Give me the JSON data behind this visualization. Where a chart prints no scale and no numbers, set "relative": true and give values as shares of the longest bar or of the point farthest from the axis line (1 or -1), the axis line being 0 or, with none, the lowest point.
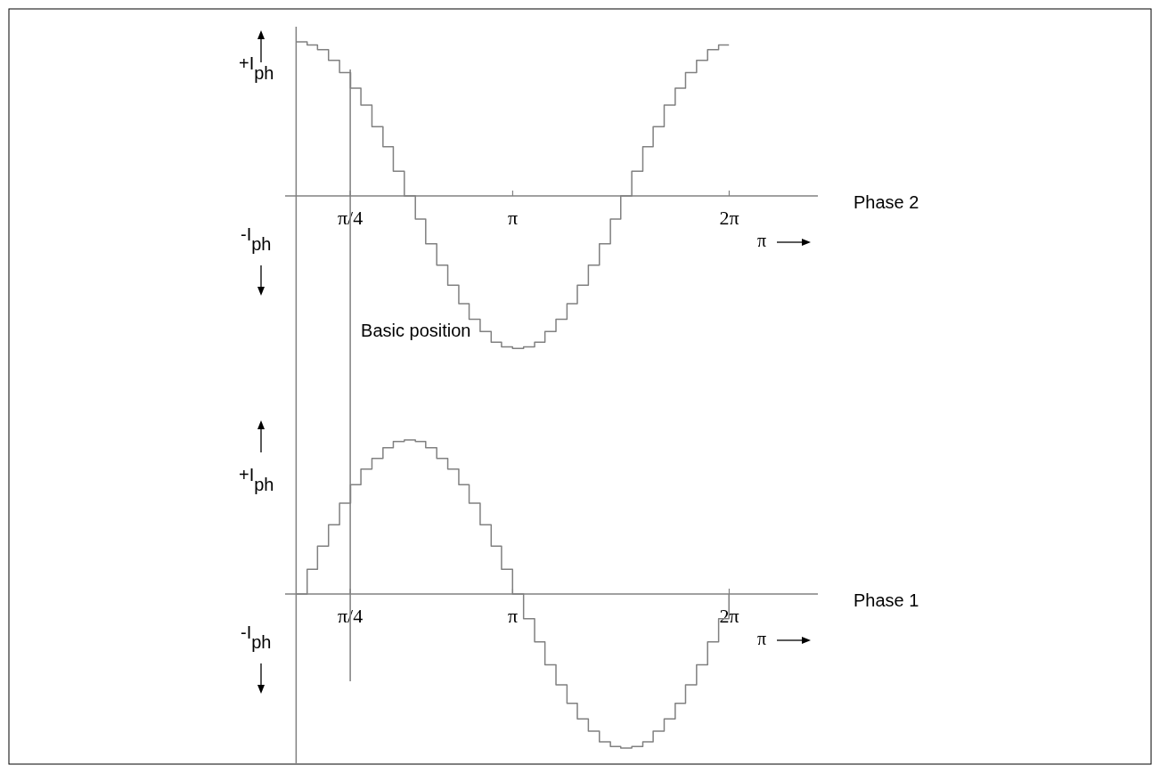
{
  "chart_data": [
    {
      "type": "step",
      "xlabel": "π",
      "ylabel": "+I$_{ph}$",
      "annotations": [
        "-I$_{ph}$",
        "Phase 2"
      ],
      "relative": true,
      "xlim": [
        -0.16,
        7.57
      ],
      "xticks": [
        {
          "value": 0.785,
          "label": "π/4"
        },
        {
          "value": 3.142,
          "label": "π"
        },
        {
          "value": 6.283,
          "label": "2π"
        }
      ],
      "ref_lines": [
        {
          "axis": "x",
          "value": 0.785,
          "label": "Basic position"
        }
      ],
      "x": [
        0,
        0.16,
        0.31,
        0.47,
        0.63,
        0.79,
        0.94,
        1.1,
        1.26,
        1.41,
        1.57,
        1.73,
        1.88,
        2.04,
        2.2,
        2.36,
        2.51,
        2.67,
        2.83,
        2.98,
        3.14,
        3.3,
        3.46,
        3.61,
        3.77,
        3.93,
        4.08,
        4.24,
        4.4,
        4.56,
        4.71,
        4.87,
        5.03,
        5.18,
        5.34,
        5.5,
        5.65,
        5.81,
        5.97,
        6.13,
        6.28
      ],
      "series": [
        {
          "color": "#808080",
          "values": [
            1,
            0.98,
            0.95,
            0.88,
            0.8,
            0.7,
            0.59,
            0.45,
            0.32,
            0.16,
            0,
            -0.15,
            -0.31,
            -0.45,
            -0.58,
            -0.7,
            -0.8,
            -0.88,
            -0.95,
            -0.98,
            -0.99,
            -0.98,
            -0.95,
            -0.88,
            -0.8,
            -0.7,
            -0.58,
            -0.45,
            -0.31,
            -0.15,
            0,
            0.16,
            0.32,
            0.45,
            0.59,
            0.7,
            0.8,
            0.88,
            0.95,
            0.98,
            0.98
          ]
        }
      ]
    },
    {
      "type": "step",
      "xlabel": "π",
      "ylabel": "+I$_{ph}$",
      "annotations": [
        "-I$_{ph}$",
        "Phase 1"
      ],
      "relative": true,
      "xlim": [
        -0.16,
        7.57
      ],
      "xticks": [
        {
          "value": 0.785,
          "label": "π/4"
        },
        {
          "value": 3.142,
          "label": "π"
        },
        {
          "value": 6.283,
          "label": "2π"
        }
      ],
      "ref_lines": [
        {
          "axis": "x",
          "value": 0.785
        }
      ],
      "x": [
        0,
        0.16,
        0.31,
        0.47,
        0.63,
        0.79,
        0.94,
        1.1,
        1.26,
        1.41,
        1.57,
        1.73,
        1.88,
        2.04,
        2.2,
        2.36,
        2.51,
        2.67,
        2.83,
        2.98,
        3.14,
        3.3,
        3.46,
        3.61,
        3.77,
        3.93,
        4.08,
        4.24,
        4.4,
        4.56,
        4.71,
        4.87,
        5.03,
        5.18,
        5.34,
        5.5,
        5.65,
        5.81,
        5.97,
        6.13,
        6.28
      ],
      "series": [
        {
          "color": "#808080",
          "values": [
            0,
            0.16,
            0.31,
            0.45,
            0.59,
            0.71,
            0.81,
            0.88,
            0.95,
            0.99,
            1,
            0.99,
            0.95,
            0.88,
            0.81,
            0.71,
            0.59,
            0.45,
            0.31,
            0.16,
            0,
            -0.16,
            -0.31,
            -0.46,
            -0.59,
            -0.71,
            -0.81,
            -0.89,
            -0.96,
            -0.99,
            -1,
            -0.99,
            -0.96,
            -0.89,
            -0.81,
            -0.71,
            -0.59,
            -0.46,
            -0.31,
            -0.16,
            0
          ]
        }
      ]
    }
  ]
}
